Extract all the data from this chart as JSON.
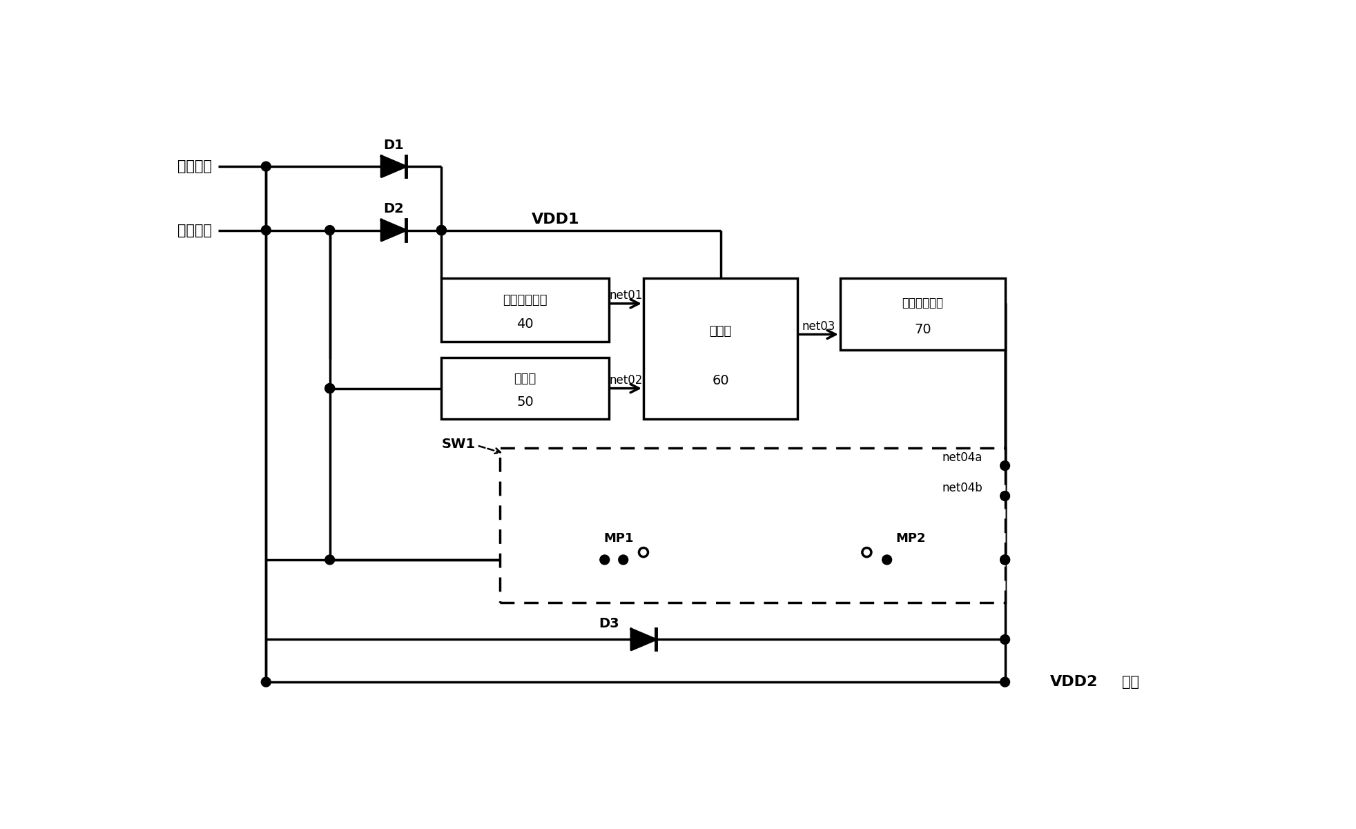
{
  "bg": "#ffffff",
  "lc": "#000000",
  "lw": 2.5,
  "fw": 19.65,
  "fh": 12.01,
  "labels": {
    "ext": "外部电源",
    "bat": "电池电源",
    "load": "负载",
    "VDD1": "VDD1",
    "VDD2": "VDD2",
    "D1": "D1",
    "D2": "D2",
    "D3": "D3",
    "SW1": "SW1",
    "net01": "net01",
    "net02": "net02",
    "net03": "net03",
    "net04a": "net04a",
    "net04b": "net04b",
    "MP1": "MP1",
    "MP2": "MP2",
    "b40a": "电压基准模块",
    "b40b": "40",
    "b50a": "分压器",
    "b50b": "50",
    "b60a": "比较器",
    "b60b": "60",
    "b70a": "电平转移模块",
    "b70b": "70"
  }
}
